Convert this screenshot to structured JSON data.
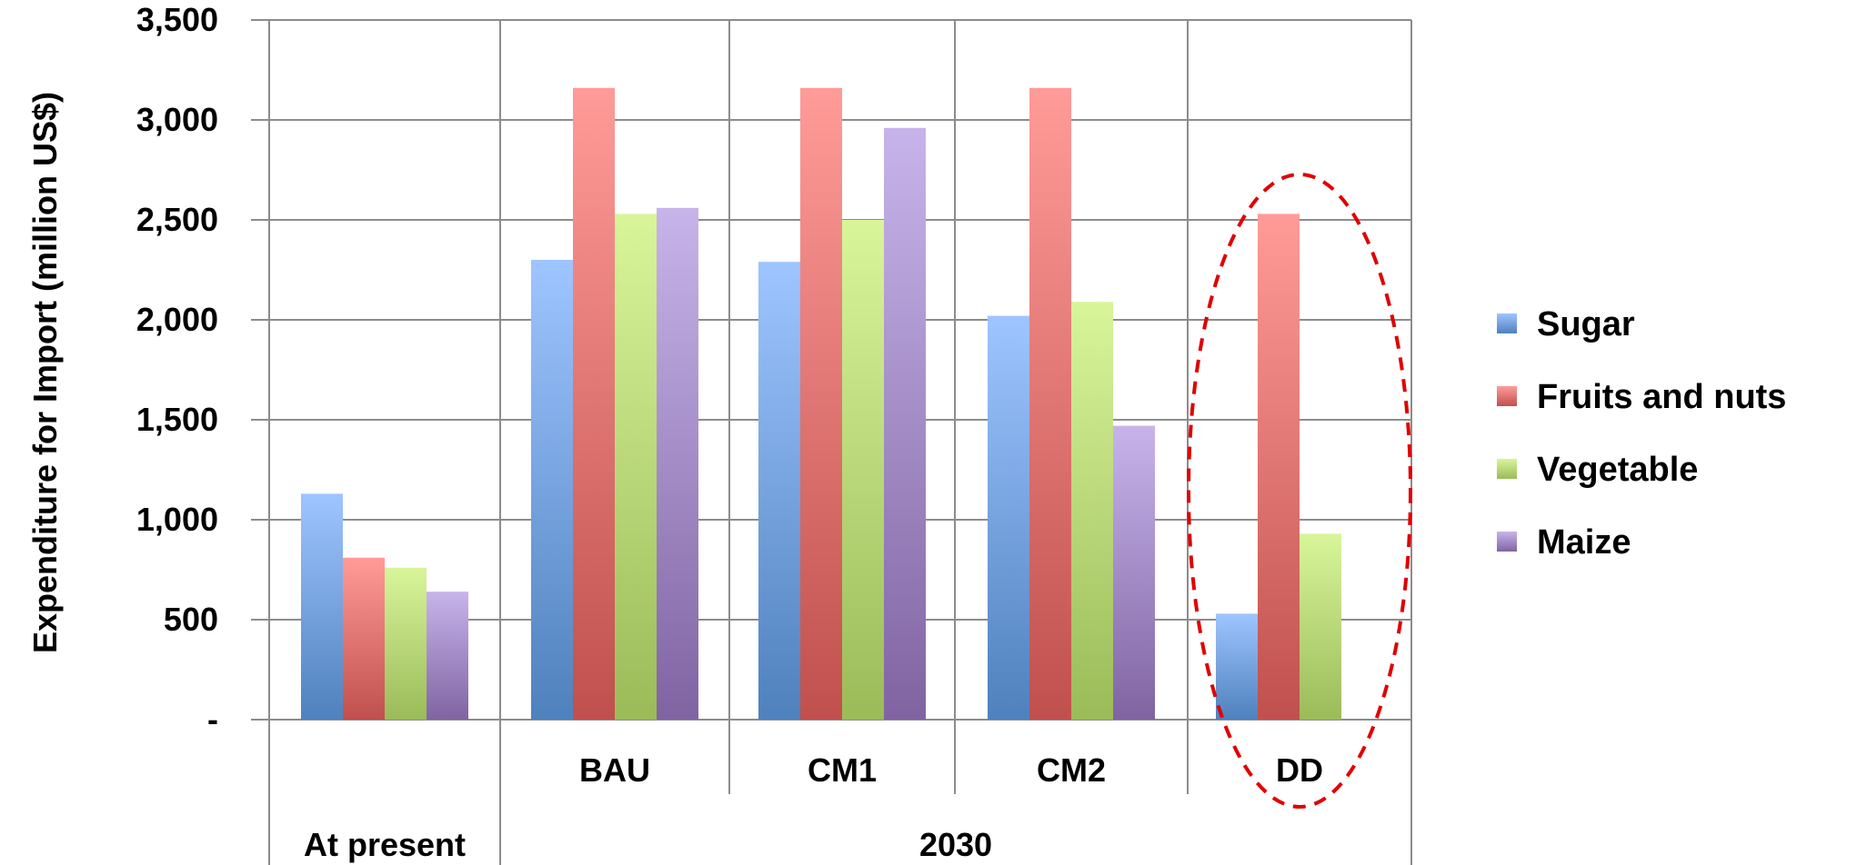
{
  "chart_data": {
    "type": "bar",
    "ylabel": "Expenditure for Import (million US$)",
    "ylim": [
      0,
      3500
    ],
    "yticks": [
      {
        "value": 0,
        "label": "-"
      },
      {
        "value": 500,
        "label": "500"
      },
      {
        "value": 1000,
        "label": "1,000"
      },
      {
        "value": 1500,
        "label": "1,500"
      },
      {
        "value": 2000,
        "label": "2,000"
      },
      {
        "value": 2500,
        "label": "2,500"
      },
      {
        "value": 3000,
        "label": "3,000"
      },
      {
        "value": 3500,
        "label": "3,500"
      }
    ],
    "categories": [
      "At present",
      "BAU",
      "CM1",
      "CM2",
      "DD"
    ],
    "category_labels": [
      "",
      "BAU",
      "CM1",
      "CM2",
      "DD"
    ],
    "group_labels": [
      {
        "label": "At present",
        "categories": [
          "At present"
        ]
      },
      {
        "label": "2030",
        "categories": [
          "BAU",
          "CM1",
          "CM2",
          "DD"
        ]
      }
    ],
    "series": [
      {
        "name": "Sugar",
        "color": "#4f81bd",
        "values": [
          1130,
          2300,
          2290,
          2020,
          530
        ]
      },
      {
        "name": "Fruits and nuts",
        "color": "#c0504d",
        "values": [
          810,
          3160,
          3160,
          3160,
          2530
        ]
      },
      {
        "name": "Vegetable",
        "color": "#9bbb59",
        "values": [
          760,
          2530,
          2500,
          2090,
          930
        ]
      },
      {
        "name": "Maize",
        "color": "#8064a2",
        "values": [
          640,
          2560,
          2960,
          1470,
          null
        ]
      }
    ],
    "grid": true,
    "legend": "right",
    "annotation": {
      "type": "dashed-ellipse",
      "color": "#e00000",
      "target": "DD"
    }
  }
}
